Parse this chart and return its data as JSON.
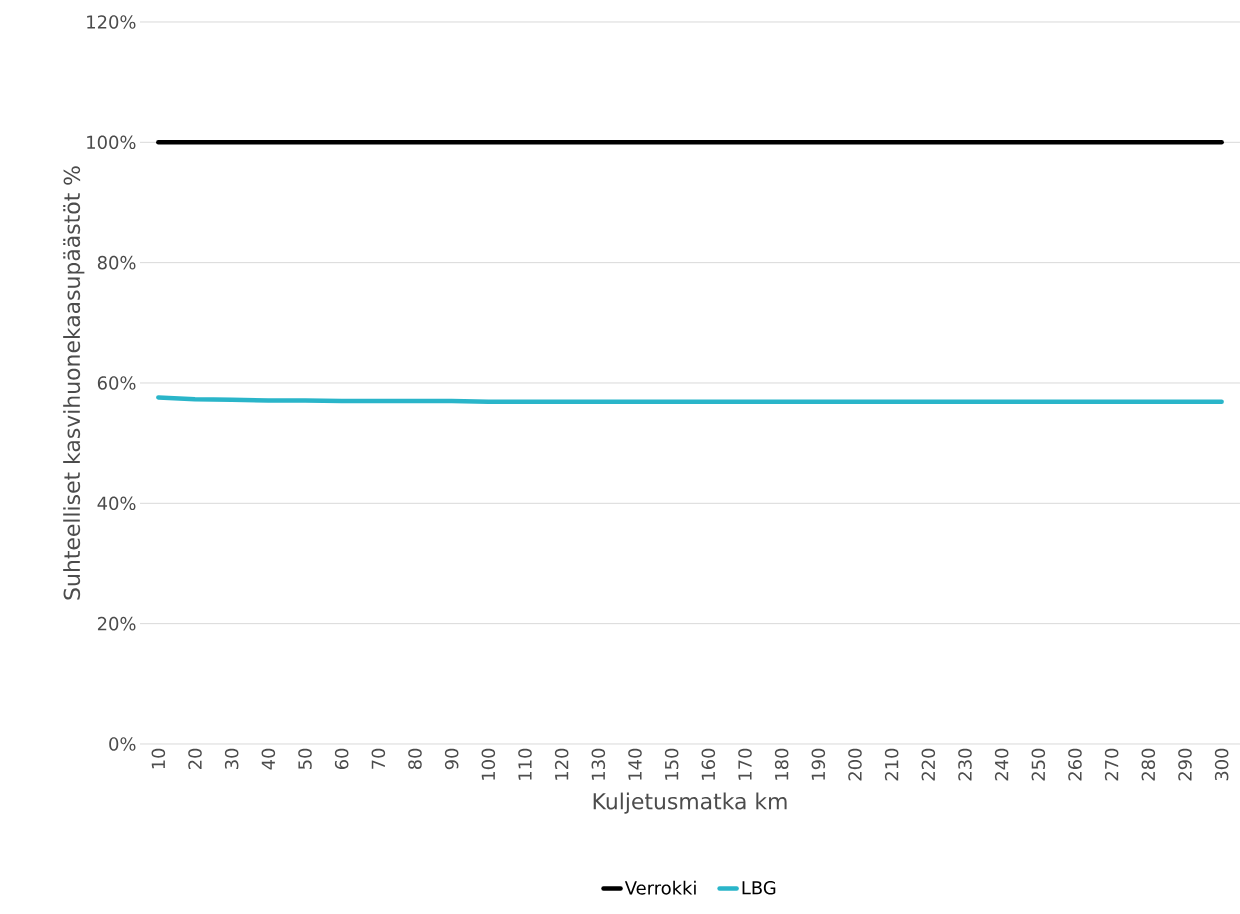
{
  "chart_data": {
    "type": "line",
    "xlabel": "Kuljetusmatka km",
    "ylabel": "Suhteelliset kasvihuonekaasupäästöt %",
    "categories": [
      "10",
      "20",
      "30",
      "40",
      "50",
      "60",
      "70",
      "80",
      "90",
      "100",
      "110",
      "120",
      "130",
      "140",
      "150",
      "160",
      "170",
      "180",
      "190",
      "200",
      "210",
      "220",
      "230",
      "240",
      "250",
      "260",
      "270",
      "280",
      "290",
      "300"
    ],
    "series": [
      {
        "name": "Verrokki",
        "color": "#000000",
        "values": [
          100,
          100,
          100,
          100,
          100,
          100,
          100,
          100,
          100,
          100,
          100,
          100,
          100,
          100,
          100,
          100,
          100,
          100,
          100,
          100,
          100,
          100,
          100,
          100,
          100,
          100,
          100,
          100,
          100,
          100
        ]
      },
      {
        "name": "LBG",
        "color": "#2ab5c9",
        "values": [
          57.6,
          57.3,
          57.2,
          57.1,
          57.1,
          57.0,
          57.0,
          57.0,
          57.0,
          56.9,
          56.9,
          56.9,
          56.9,
          56.9,
          56.9,
          56.9,
          56.9,
          56.9,
          56.9,
          56.9,
          56.9,
          56.9,
          56.9,
          56.9,
          56.9,
          56.9,
          56.9,
          56.9,
          56.9,
          56.9
        ]
      }
    ],
    "ylim": [
      0,
      120
    ],
    "yticks": [
      {
        "value": 0,
        "label": "0%"
      },
      {
        "value": 20,
        "label": "20%"
      },
      {
        "value": 40,
        "label": "40%"
      },
      {
        "value": 60,
        "label": "60%"
      },
      {
        "value": 80,
        "label": "80%"
      },
      {
        "value": 100,
        "label": "100%"
      },
      {
        "value": 120,
        "label": "120%"
      }
    ],
    "grid": "y",
    "legend": "bottom"
  }
}
